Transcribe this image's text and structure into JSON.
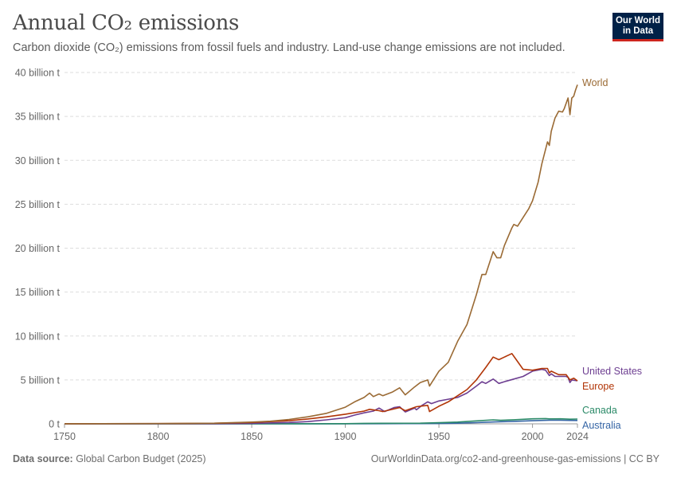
{
  "header": {
    "title": "Annual CO₂ emissions",
    "subtitle": "Carbon dioxide (CO₂) emissions from fossil fuels and industry. Land-use change emissions are not included.",
    "logo_line1": "Our World",
    "logo_line2": "in Data"
  },
  "footer": {
    "source_label": "Data source:",
    "source_value": "Global Carbon Budget (2025)",
    "url_license": "OurWorldinData.org/co2-and-greenhouse-gas-emissions | CC BY"
  },
  "chart_data": {
    "type": "line",
    "title": "Annual CO₂ emissions",
    "xlabel": "",
    "ylabel": "",
    "xlim": [
      1750,
      2024
    ],
    "ylim": [
      0,
      40
    ],
    "grid": "horizontal-dashed",
    "legend": "labels at line ends (right)",
    "x_ticks": [
      "1750",
      "1800",
      "1850",
      "1900",
      "1950",
      "2000",
      "2024"
    ],
    "y_ticks": [
      {
        "value": 0,
        "label": "0 t"
      },
      {
        "value": 5,
        "label": "5 billion t"
      },
      {
        "value": 10,
        "label": "10 billion t"
      },
      {
        "value": 15,
        "label": "15 billion t"
      },
      {
        "value": 20,
        "label": "20 billion t"
      },
      {
        "value": 25,
        "label": "25 billion t"
      },
      {
        "value": 30,
        "label": "30 billion t"
      },
      {
        "value": 35,
        "label": "35 billion t"
      },
      {
        "value": 40,
        "label": "40 billion t"
      }
    ],
    "series": [
      {
        "name": "World",
        "color": "#9a6a34",
        "points": [
          [
            1750,
            0.01
          ],
          [
            1800,
            0.03
          ],
          [
            1830,
            0.07
          ],
          [
            1850,
            0.2
          ],
          [
            1860,
            0.3
          ],
          [
            1870,
            0.5
          ],
          [
            1880,
            0.8
          ],
          [
            1890,
            1.2
          ],
          [
            1900,
            1.9
          ],
          [
            1905,
            2.5
          ],
          [
            1910,
            3.0
          ],
          [
            1913,
            3.5
          ],
          [
            1915,
            3.1
          ],
          [
            1918,
            3.4
          ],
          [
            1920,
            3.2
          ],
          [
            1925,
            3.6
          ],
          [
            1929,
            4.1
          ],
          [
            1932,
            3.3
          ],
          [
            1937,
            4.2
          ],
          [
            1940,
            4.7
          ],
          [
            1944,
            5.0
          ],
          [
            1945,
            4.3
          ],
          [
            1950,
            6.0
          ],
          [
            1955,
            7.0
          ],
          [
            1960,
            9.4
          ],
          [
            1965,
            11.3
          ],
          [
            1970,
            14.7
          ],
          [
            1973,
            17.0
          ],
          [
            1975,
            17.0
          ],
          [
            1979,
            19.6
          ],
          [
            1981,
            18.9
          ],
          [
            1983,
            18.9
          ],
          [
            1985,
            20.3
          ],
          [
            1989,
            22.3
          ],
          [
            1990,
            22.7
          ],
          [
            1992,
            22.5
          ],
          [
            1995,
            23.5
          ],
          [
            1998,
            24.5
          ],
          [
            2000,
            25.4
          ],
          [
            2003,
            27.5
          ],
          [
            2005,
            29.6
          ],
          [
            2008,
            32.1
          ],
          [
            2009,
            31.7
          ],
          [
            2010,
            33.3
          ],
          [
            2012,
            34.8
          ],
          [
            2014,
            35.6
          ],
          [
            2016,
            35.5
          ],
          [
            2017,
            35.9
          ],
          [
            2019,
            37.1
          ],
          [
            2020,
            35.2
          ],
          [
            2021,
            37.1
          ],
          [
            2022,
            37.3
          ],
          [
            2023,
            38.0
          ],
          [
            2024,
            38.6
          ]
        ]
      },
      {
        "name": "Europe",
        "color": "#b13507",
        "points": [
          [
            1750,
            0.01
          ],
          [
            1800,
            0.03
          ],
          [
            1830,
            0.06
          ],
          [
            1850,
            0.15
          ],
          [
            1870,
            0.35
          ],
          [
            1880,
            0.55
          ],
          [
            1890,
            0.8
          ],
          [
            1900,
            1.1
          ],
          [
            1910,
            1.45
          ],
          [
            1913,
            1.65
          ],
          [
            1918,
            1.5
          ],
          [
            1920,
            1.4
          ],
          [
            1929,
            1.85
          ],
          [
            1932,
            1.5
          ],
          [
            1938,
            1.95
          ],
          [
            1944,
            2.1
          ],
          [
            1945,
            1.4
          ],
          [
            1950,
            2.0
          ],
          [
            1955,
            2.5
          ],
          [
            1960,
            3.2
          ],
          [
            1965,
            3.9
          ],
          [
            1970,
            5.0
          ],
          [
            1975,
            6.4
          ],
          [
            1979,
            7.6
          ],
          [
            1982,
            7.3
          ],
          [
            1985,
            7.6
          ],
          [
            1989,
            8.0
          ],
          [
            1991,
            7.4
          ],
          [
            1995,
            6.2
          ],
          [
            2000,
            6.1
          ],
          [
            2005,
            6.3
          ],
          [
            2008,
            6.3
          ],
          [
            2009,
            5.8
          ],
          [
            2010,
            6.0
          ],
          [
            2014,
            5.6
          ],
          [
            2018,
            5.6
          ],
          [
            2020,
            5.0
          ],
          [
            2022,
            5.2
          ],
          [
            2024,
            4.9
          ]
        ]
      },
      {
        "name": "United States",
        "color": "#6d3e91",
        "points": [
          [
            1750,
            0.0
          ],
          [
            1800,
            0.01
          ],
          [
            1830,
            0.02
          ],
          [
            1850,
            0.05
          ],
          [
            1870,
            0.15
          ],
          [
            1880,
            0.25
          ],
          [
            1890,
            0.45
          ],
          [
            1900,
            0.7
          ],
          [
            1905,
            1.0
          ],
          [
            1910,
            1.25
          ],
          [
            1915,
            1.45
          ],
          [
            1918,
            1.8
          ],
          [
            1921,
            1.4
          ],
          [
            1926,
            1.85
          ],
          [
            1929,
            1.95
          ],
          [
            1932,
            1.35
          ],
          [
            1937,
            1.8
          ],
          [
            1938,
            1.6
          ],
          [
            1941,
            2.1
          ],
          [
            1944,
            2.5
          ],
          [
            1946,
            2.3
          ],
          [
            1950,
            2.6
          ],
          [
            1955,
            2.8
          ],
          [
            1960,
            3.0
          ],
          [
            1965,
            3.5
          ],
          [
            1970,
            4.3
          ],
          [
            1973,
            4.8
          ],
          [
            1975,
            4.6
          ],
          [
            1979,
            5.1
          ],
          [
            1982,
            4.6
          ],
          [
            1985,
            4.8
          ],
          [
            1990,
            5.1
          ],
          [
            1995,
            5.4
          ],
          [
            2000,
            6.0
          ],
          [
            2005,
            6.2
          ],
          [
            2007,
            6.1
          ],
          [
            2009,
            5.5
          ],
          [
            2010,
            5.7
          ],
          [
            2012,
            5.4
          ],
          [
            2015,
            5.4
          ],
          [
            2018,
            5.4
          ],
          [
            2019,
            5.3
          ],
          [
            2020,
            4.7
          ],
          [
            2021,
            5.0
          ],
          [
            2024,
            4.9
          ]
        ]
      },
      {
        "name": "Canada",
        "color": "#2b8a68",
        "points": [
          [
            1750,
            0.0
          ],
          [
            1850,
            0.002
          ],
          [
            1880,
            0.01
          ],
          [
            1900,
            0.02
          ],
          [
            1910,
            0.05
          ],
          [
            1920,
            0.06
          ],
          [
            1940,
            0.07
          ],
          [
            1950,
            0.13
          ],
          [
            1960,
            0.2
          ],
          [
            1970,
            0.34
          ],
          [
            1979,
            0.45
          ],
          [
            1983,
            0.4
          ],
          [
            1990,
            0.46
          ],
          [
            2000,
            0.57
          ],
          [
            2007,
            0.6
          ],
          [
            2009,
            0.56
          ],
          [
            2015,
            0.57
          ],
          [
            2020,
            0.53
          ],
          [
            2024,
            0.54
          ]
        ]
      },
      {
        "name": "Australia",
        "color": "#3565a5",
        "points": [
          [
            1750,
            0.0
          ],
          [
            1850,
            0.0
          ],
          [
            1880,
            0.005
          ],
          [
            1900,
            0.01
          ],
          [
            1920,
            0.02
          ],
          [
            1940,
            0.03
          ],
          [
            1950,
            0.04
          ],
          [
            1960,
            0.07
          ],
          [
            1970,
            0.14
          ],
          [
            1980,
            0.22
          ],
          [
            1990,
            0.28
          ],
          [
            2000,
            0.35
          ],
          [
            2009,
            0.41
          ],
          [
            2015,
            0.41
          ],
          [
            2020,
            0.39
          ],
          [
            2024,
            0.38
          ]
        ]
      }
    ]
  }
}
